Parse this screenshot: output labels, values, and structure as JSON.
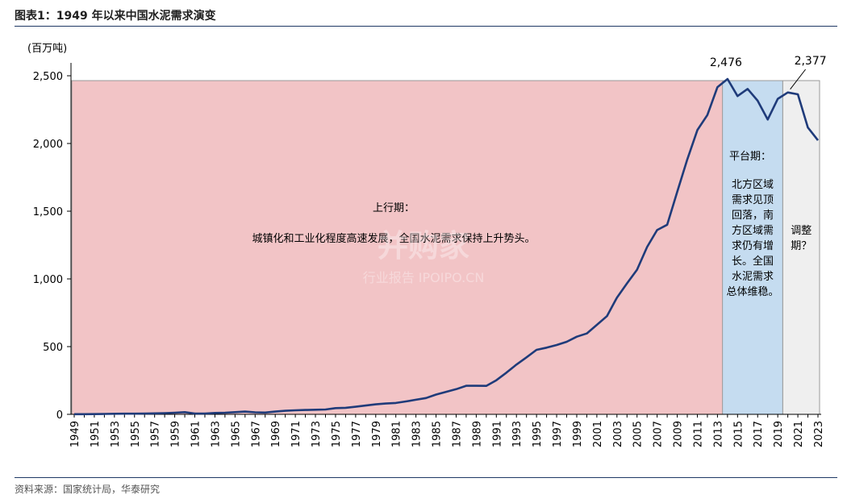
{
  "figure": {
    "title": "图表1：1949 年以来中国水泥需求演变",
    "source": "资料来源：国家统计局，华泰研究"
  },
  "watermark": {
    "brand": "并购家",
    "sub": "行业报告 IPOIPO.CN"
  },
  "chart_data": {
    "type": "line",
    "title": "",
    "ylabel": "(百万吨)",
    "xlabel": "",
    "ylim": [
      0,
      2500
    ],
    "yticks": [
      0,
      500,
      1000,
      1500,
      2000,
      2500
    ],
    "ytick_labels": [
      "0",
      "500",
      "1,000",
      "1,500",
      "2,000",
      "2,500"
    ],
    "xlim": [
      1949,
      2023
    ],
    "xticks": [
      1949,
      1951,
      1953,
      1955,
      1957,
      1959,
      1961,
      1963,
      1965,
      1967,
      1969,
      1971,
      1973,
      1975,
      1977,
      1979,
      1981,
      1983,
      1985,
      1987,
      1989,
      1991,
      1993,
      1995,
      1997,
      1999,
      2001,
      2003,
      2005,
      2007,
      2009,
      2011,
      2013,
      2015,
      2017,
      2019,
      2021,
      2023
    ],
    "grid": false,
    "line_color": "#1f3b7a",
    "series": [
      {
        "name": "",
        "x": [
          1949,
          1950,
          1951,
          1952,
          1953,
          1954,
          1955,
          1956,
          1957,
          1958,
          1959,
          1960,
          1961,
          1962,
          1963,
          1964,
          1965,
          1966,
          1967,
          1968,
          1969,
          1970,
          1971,
          1972,
          1973,
          1974,
          1975,
          1976,
          1977,
          1978,
          1979,
          1980,
          1981,
          1982,
          1983,
          1984,
          1985,
          1986,
          1987,
          1988,
          1989,
          1990,
          1991,
          1992,
          1993,
          1994,
          1995,
          1996,
          1997,
          1998,
          1999,
          2000,
          2001,
          2002,
          2003,
          2004,
          2005,
          2006,
          2007,
          2008,
          2009,
          2010,
          2011,
          2012,
          2013,
          2014,
          2015,
          2016,
          2017,
          2018,
          2019,
          2020,
          2021,
          2022,
          2023
        ],
        "values": [
          1,
          1,
          2,
          3,
          4,
          5,
          5,
          6,
          7,
          9,
          12,
          16,
          6,
          6,
          10,
          12,
          16,
          20,
          15,
          13,
          20,
          26,
          30,
          32,
          34,
          36,
          46,
          48,
          56,
          65,
          74,
          80,
          84,
          95,
          108,
          120,
          146,
          166,
          186,
          211,
          211,
          210,
          252,
          308,
          367,
          421,
          476,
          492,
          512,
          536,
          573,
          597,
          661,
          725,
          862,
          967,
          1068,
          1236,
          1361,
          1400,
          1644,
          1882,
          2099,
          2210,
          2416,
          2476,
          2350,
          2403,
          2316,
          2177,
          2330,
          2377,
          2363,
          2118,
          2023
        ]
      }
    ],
    "annotations": [
      {
        "label": "2,476",
        "x": 2014,
        "y": 2476
      },
      {
        "label": "2,377",
        "x": 2020,
        "y": 2377
      }
    ],
    "phases": [
      {
        "name": "上行期",
        "title": "上行期：",
        "text": "城镇化和工业化程度高速发展，全国水泥需求保持上升势头。",
        "from": 1949,
        "to": 2013,
        "color": "#f2c4c6"
      },
      {
        "name": "平台期",
        "title": "平台期：",
        "lines": [
          "北方区域",
          "需求见顶",
          "回落，南",
          "方区域需",
          "求仍有增",
          "长。全国",
          "水泥需求",
          "总体维稳。"
        ],
        "from": 2013.5,
        "to": 2019.5,
        "color": "#c5dcf0"
      },
      {
        "name": "调整期",
        "lines": [
          "调整",
          "期？"
        ],
        "from": 2019.5,
        "to": 2023,
        "color": "#efefef"
      }
    ]
  }
}
